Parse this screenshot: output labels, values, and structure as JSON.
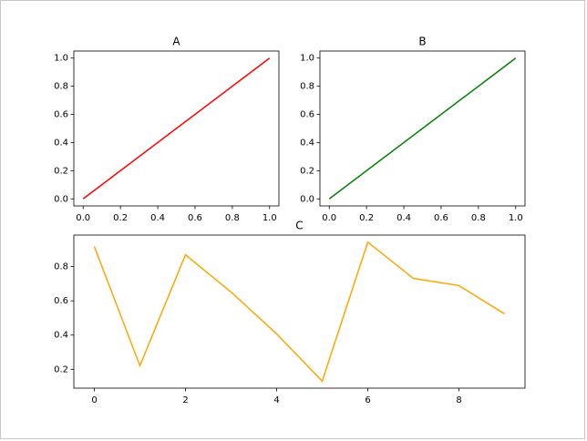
{
  "chart_data": [
    {
      "type": "line",
      "title": "A",
      "x": [
        0,
        1
      ],
      "values": [
        0,
        1
      ],
      "color": "#ff0000",
      "xlim": [
        -0.05,
        1.05
      ],
      "ylim": [
        -0.05,
        1.05
      ],
      "xticks": [
        {
          "value": 0,
          "label": "0.0"
        },
        0.2,
        0.4,
        0.6,
        0.8,
        {
          "value": 1,
          "label": "1.0"
        }
      ],
      "yticks": [
        {
          "value": 0,
          "label": "0.0"
        },
        0.2,
        0.4,
        0.6,
        0.8,
        {
          "value": 1,
          "label": "1.0"
        }
      ]
    },
    {
      "type": "line",
      "title": "B",
      "x": [
        0,
        1
      ],
      "values": [
        0,
        1
      ],
      "color": "#008000",
      "xlim": [
        -0.05,
        1.05
      ],
      "ylim": [
        -0.05,
        1.05
      ],
      "xticks": [
        {
          "value": 0,
          "label": "0.0"
        },
        0.2,
        0.4,
        0.6,
        0.8,
        {
          "value": 1,
          "label": "1.0"
        }
      ],
      "yticks": [
        {
          "value": 0,
          "label": "0.0"
        },
        0.2,
        0.4,
        0.6,
        0.8,
        {
          "value": 1,
          "label": "1.0"
        }
      ]
    },
    {
      "type": "line",
      "title": "C",
      "x": [
        0,
        1,
        2,
        3,
        4,
        5,
        6,
        7,
        8,
        9
      ],
      "values": [
        0.917,
        0.221,
        0.869,
        0.651,
        0.407,
        0.131,
        0.943,
        0.731,
        0.689,
        0.524
      ],
      "color": "#ffa500",
      "xlim": [
        -0.45,
        9.45
      ],
      "ylim": [
        0.09,
        0.984
      ],
      "xticks": [
        0,
        2,
        4,
        6,
        8
      ],
      "yticks": [
        0.2,
        0.4,
        0.6,
        0.8
      ]
    }
  ]
}
